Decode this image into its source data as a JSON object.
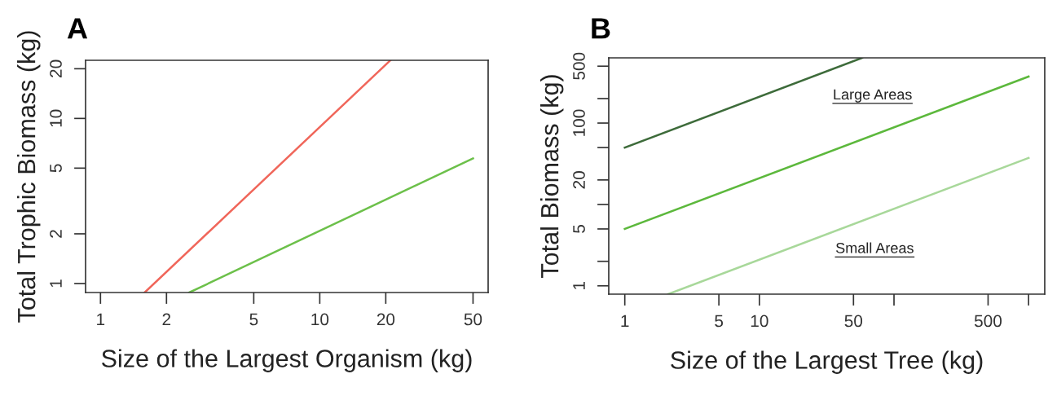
{
  "chart_data": [
    {
      "type": "line",
      "title": "A",
      "xlabel": "Size of the Largest Organism (kg)",
      "ylabel": "Total Trophic Biomass (kg)",
      "log": "xy",
      "xlim": [
        0.855,
        58.6
      ],
      "ylim": [
        0.882,
        22.5
      ],
      "xticks": [
        1,
        2,
        5,
        10,
        20,
        50
      ],
      "yticks": [
        1,
        2,
        5,
        10,
        20
      ],
      "grid": false,
      "marker": "none",
      "line_style": "solid",
      "series": [
        {
          "color": "#f0665a",
          "x": [
            1.59,
            21.0
          ],
          "values": [
            0.882,
            22.5
          ]
        },
        {
          "color": "#6cc04a",
          "x": [
            2.54,
            50
          ],
          "values": [
            0.882,
            5.73
          ]
        }
      ]
    },
    {
      "type": "line",
      "title": "B",
      "xlabel": "Size of the Largest Tree (kg)",
      "ylabel": "Total Biomass (kg)",
      "log": "xy",
      "xlim": [
        0.76,
        1318
      ],
      "ylim": [
        0.79,
        633
      ],
      "xticks": [
        1,
        5,
        10,
        50,
        {
          "value": 100,
          "label": null
        },
        500,
        {
          "value": 1000,
          "label": null
        }
      ],
      "yticks": [
        1,
        {
          "value": 2,
          "label": null
        },
        5,
        {
          "value": 10,
          "label": null
        },
        20,
        {
          "value": 50,
          "label": null
        },
        100,
        {
          "value": 200,
          "label": null
        },
        500
      ],
      "grid": false,
      "marker": "none",
      "line_style": "solid",
      "series": [
        {
          "color": "#3d6b3a",
          "x": [
            1,
            58
          ],
          "values": [
            50,
            633
          ]
        },
        {
          "color": "#5cb83c",
          "x": [
            1,
            1000
          ],
          "values": [
            5,
            373
          ]
        },
        {
          "color": "#a8d89a",
          "x": [
            2.1,
            1000
          ],
          "values": [
            0.79,
            37.3
          ]
        }
      ],
      "annotations": [
        "Large Areas",
        "Small Areas"
      ]
    }
  ]
}
